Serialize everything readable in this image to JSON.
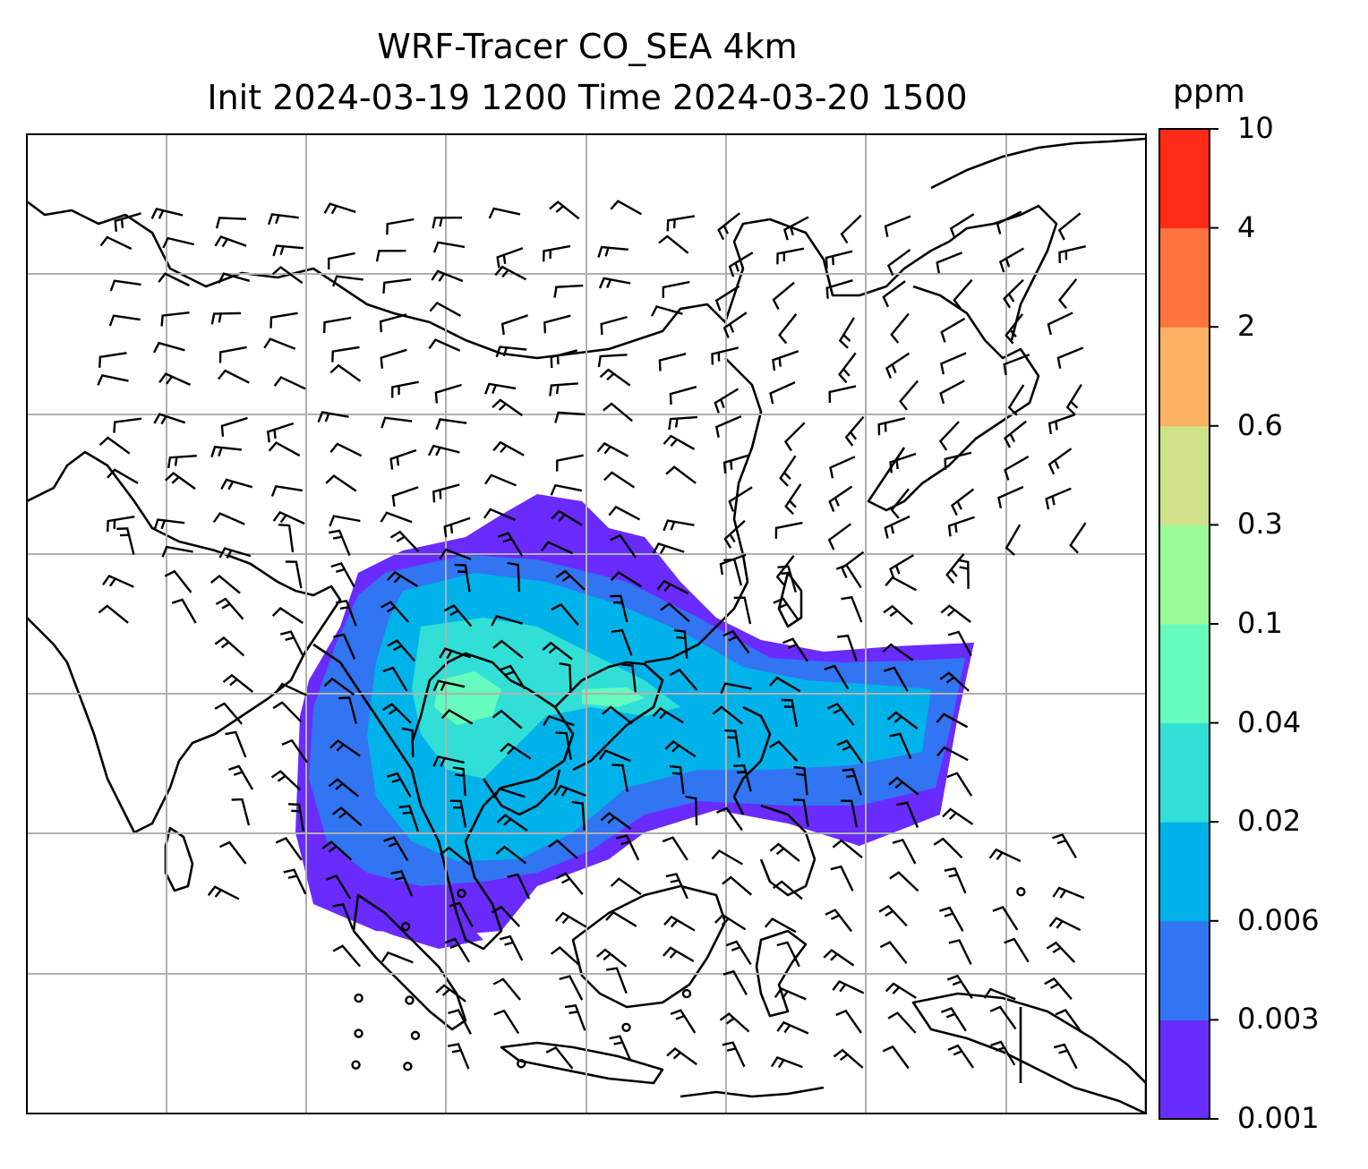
{
  "title": {
    "line1": "WRF-Tracer CO_SEA 4km",
    "line2": "Init 2024-03-19 1200 Time 2024-03-20 1500"
  },
  "colorbar": {
    "unit": "ppm",
    "ticks": [
      "0.001",
      "0.003",
      "0.006",
      "0.02",
      "0.04",
      "0.1",
      "0.3",
      "0.6",
      "2",
      "4",
      "10"
    ],
    "colors": [
      "#6a2bff",
      "#3175f2",
      "#00b2ea",
      "#31dfd6",
      "#65fcbd",
      "#9afa98",
      "#cfe28a",
      "#feb063",
      "#ff733e",
      "#ff2b17"
    ]
  },
  "map": {
    "features": [
      "coastlines",
      "lat-lon-gridlines",
      "wind-barbs",
      "CO-tracer-filled-contours"
    ],
    "plume_color_low": "#6a2bff",
    "plume_color_mid": "#00b2ea",
    "plume_color_high": "#65fcbd"
  }
}
